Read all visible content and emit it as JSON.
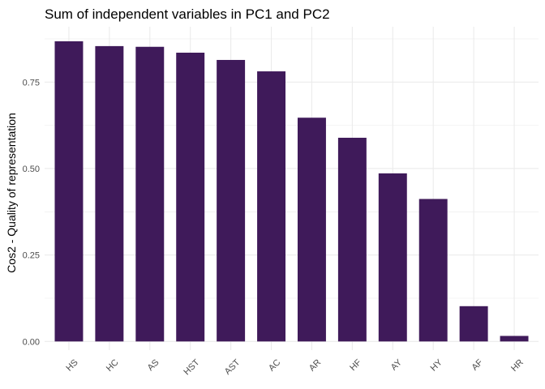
{
  "chart_data": {
    "type": "bar",
    "title": "Sum of independent variables in PC1 and PC2",
    "xlabel": "",
    "ylabel": "Cos2 - Quality of representation",
    "categories": [
      "HS",
      "HC",
      "AS",
      "HST",
      "AST",
      "AC",
      "AR",
      "HF",
      "AY",
      "HY",
      "AF",
      "HR"
    ],
    "values": [
      0.868,
      0.854,
      0.852,
      0.835,
      0.814,
      0.781,
      0.647,
      0.589,
      0.486,
      0.412,
      0.102,
      0.016
    ],
    "ylim": [
      0,
      0.9
    ],
    "yticks": [
      0,
      0.25,
      0.5,
      0.75
    ],
    "ytick_labels": [
      "0.00",
      "0.25",
      "0.50",
      "0.75"
    ],
    "grid": true,
    "legend": "none",
    "bar_color": "#3f1a5a",
    "grid_color": "#ebebeb"
  }
}
